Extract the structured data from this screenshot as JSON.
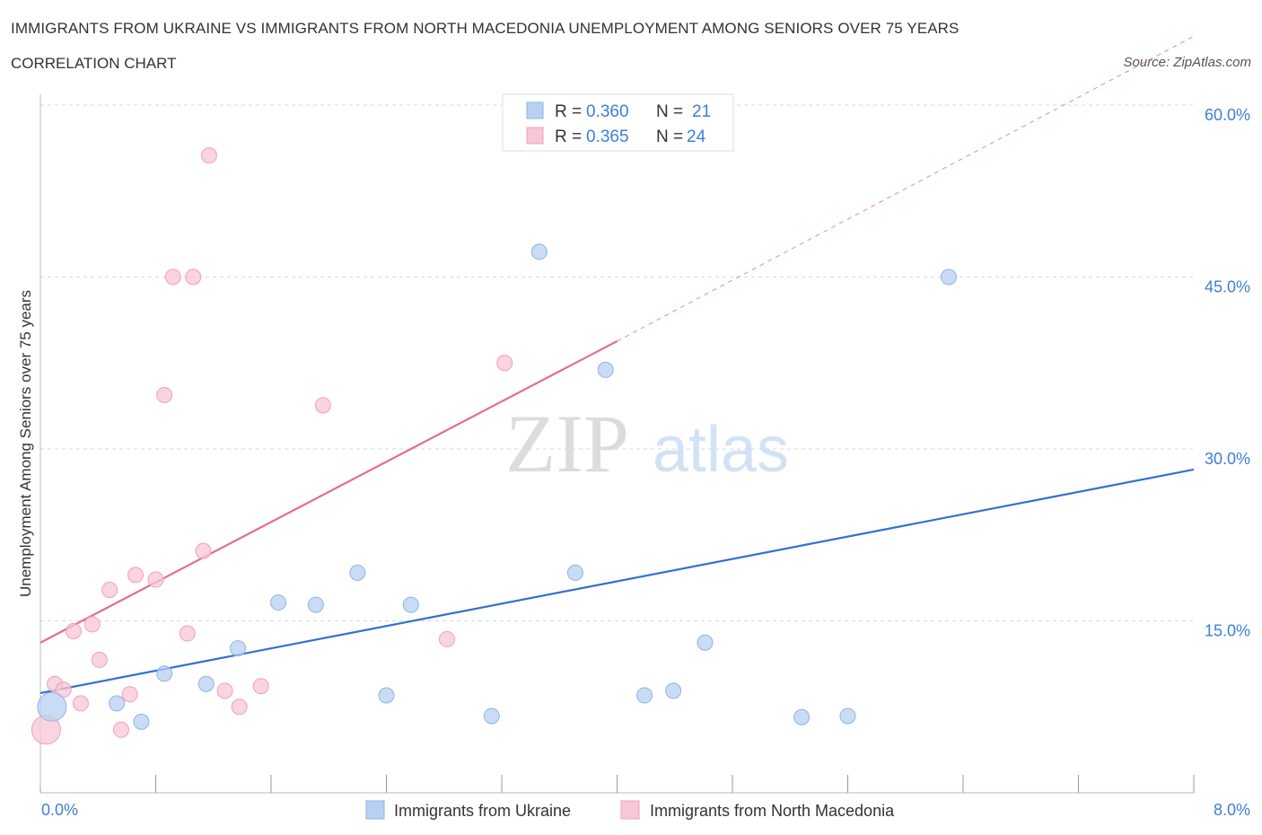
{
  "header": {
    "title": "IMMIGRANTS FROM UKRAINE VS IMMIGRANTS FROM NORTH MACEDONIA UNEMPLOYMENT AMONG SENIORS OVER 75 YEARS",
    "subtitle": "CORRELATION CHART",
    "source": "Source: ZipAtlas.com"
  },
  "watermark": {
    "zip": "ZIP",
    "atlas": "atlas"
  },
  "colors": {
    "ukraine_fill": "#b8d0f2",
    "ukraine_stroke": "#8eb3e6",
    "ukraine_line": "#2f72d0",
    "macedonia_fill": "#f8c6d4",
    "macedonia_stroke": "#f0a0b8",
    "macedonia_line": "#e36d93",
    "axis_text": "#3d7fd6",
    "grid": "#d8d8d8"
  },
  "chart_data": {
    "type": "scatter",
    "title": "IMMIGRANTS FROM UKRAINE VS IMMIGRANTS FROM NORTH MACEDONIA UNEMPLOYMENT AMONG SENIORS OVER 75 YEARS",
    "xlabel": "",
    "ylabel": "Unemployment Among Seniors over 75 years",
    "xlim": [
      0,
      8.0
    ],
    "ylim": [
      0,
      60.0
    ],
    "x_tick_labels": [
      {
        "value": 0,
        "label": "0.0%"
      },
      {
        "value": 8.0,
        "label": "8.0%"
      }
    ],
    "y_tick_labels": [
      {
        "value": 15,
        "label": "15.0%"
      },
      {
        "value": 30,
        "label": "30.0%"
      },
      {
        "value": 45,
        "label": "45.0%"
      },
      {
        "value": 60,
        "label": "60.0%"
      }
    ],
    "legend": {
      "position": "top-center",
      "entries": [
        {
          "r_label": "R =",
          "r_value": "0.360",
          "n_label": "N =",
          "n_value": "21"
        },
        {
          "r_label": "R =",
          "r_value": "0.365",
          "n_label": "N =",
          "n_value": "24"
        }
      ]
    },
    "bottom_legend": [
      "Immigrants from Ukraine",
      "Immigrants from North Macedonia"
    ],
    "series": [
      {
        "name": "Immigrants from Ukraine",
        "points": [
          {
            "x": 0.08,
            "y": 7.5,
            "large": true
          },
          {
            "x": 0.53,
            "y": 7.8
          },
          {
            "x": 0.7,
            "y": 6.2
          },
          {
            "x": 0.86,
            "y": 10.4
          },
          {
            "x": 1.15,
            "y": 9.5
          },
          {
            "x": 1.37,
            "y": 12.6
          },
          {
            "x": 1.65,
            "y": 16.6
          },
          {
            "x": 1.91,
            "y": 16.4
          },
          {
            "x": 2.2,
            "y": 19.2
          },
          {
            "x": 2.4,
            "y": 8.5
          },
          {
            "x": 2.57,
            "y": 16.4
          },
          {
            "x": 3.13,
            "y": 6.7
          },
          {
            "x": 3.46,
            "y": 47.2
          },
          {
            "x": 3.71,
            "y": 19.2
          },
          {
            "x": 3.92,
            "y": 36.9
          },
          {
            "x": 4.19,
            "y": 8.5
          },
          {
            "x": 4.39,
            "y": 8.9
          },
          {
            "x": 4.61,
            "y": 13.1
          },
          {
            "x": 5.28,
            "y": 6.6
          },
          {
            "x": 5.6,
            "y": 6.7
          },
          {
            "x": 6.3,
            "y": 45.0
          }
        ],
        "trend": {
          "x0": 0,
          "y0": 8.7,
          "x1": 8.0,
          "y1": 28.2
        }
      },
      {
        "name": "Immigrants from North Macedonia",
        "points": [
          {
            "x": 0.04,
            "y": 5.5,
            "large": true
          },
          {
            "x": 0.1,
            "y": 9.5
          },
          {
            "x": 0.16,
            "y": 9.0
          },
          {
            "x": 0.23,
            "y": 14.1
          },
          {
            "x": 0.28,
            "y": 7.8
          },
          {
            "x": 0.36,
            "y": 14.7
          },
          {
            "x": 0.41,
            "y": 11.6
          },
          {
            "x": 0.48,
            "y": 17.7
          },
          {
            "x": 0.56,
            "y": 5.5
          },
          {
            "x": 0.62,
            "y": 8.6
          },
          {
            "x": 0.66,
            "y": 19.0
          },
          {
            "x": 0.8,
            "y": 18.6
          },
          {
            "x": 0.86,
            "y": 34.7
          },
          {
            "x": 0.92,
            "y": 45.0
          },
          {
            "x": 1.02,
            "y": 13.9
          },
          {
            "x": 1.06,
            "y": 45.0
          },
          {
            "x": 1.13,
            "y": 21.1
          },
          {
            "x": 1.17,
            "y": 55.6
          },
          {
            "x": 1.28,
            "y": 8.9
          },
          {
            "x": 1.38,
            "y": 7.5
          },
          {
            "x": 1.53,
            "y": 9.3
          },
          {
            "x": 1.96,
            "y": 33.8
          },
          {
            "x": 2.82,
            "y": 13.4
          },
          {
            "x": 3.22,
            "y": 37.5
          }
        ],
        "trend": {
          "x0": 0,
          "y0": 13.1,
          "x1": 4.0,
          "y1": 39.4,
          "dash_x1": 8.0,
          "dash_y1": 66.0
        }
      }
    ]
  }
}
